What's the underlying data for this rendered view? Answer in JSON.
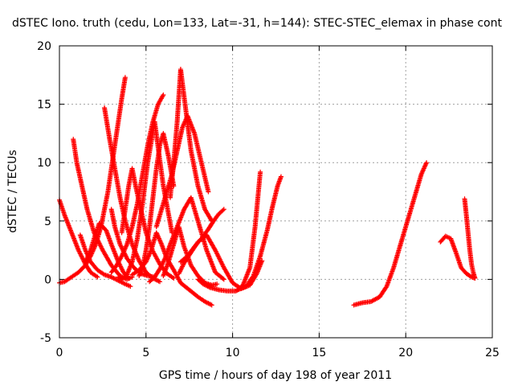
{
  "chart_data": {
    "type": "scatter",
    "title": "dSTEC Iono. truth (cedu, Lon=133, Lat=-31, h=144): STEC-STEC_elemax in phase cont",
    "xlabel": "GPS time / hours of day 198 of year 2011",
    "ylabel": "dSTEC  / TECUs",
    "xlim": [
      0,
      25
    ],
    "ylim": [
      -5,
      20
    ],
    "xticks": [
      "0",
      "5",
      "10",
      "15",
      "20",
      "25"
    ],
    "yticks": [
      "-5",
      "0",
      "5",
      "10",
      "15",
      "20"
    ],
    "grid": true,
    "marker": "plus",
    "color": "#ff0000",
    "series": [
      {
        "x": [
          0.0,
          0.3,
          0.7,
          1.1,
          1.5,
          1.8,
          2.1,
          2.4,
          2.8,
          3.2,
          3.6,
          3.8
        ],
        "y": [
          -0.3,
          -0.2,
          0.2,
          0.6,
          1.2,
          2.0,
          3.0,
          4.5,
          7.5,
          11.5,
          15.5,
          17.3
        ]
      },
      {
        "x": [
          0.0,
          0.3,
          0.7,
          1.1,
          1.5,
          1.8,
          2.2
        ],
        "y": [
          6.8,
          5.5,
          4.0,
          2.5,
          1.3,
          0.6,
          0.2
        ]
      },
      {
        "x": [
          0.8,
          1.0,
          1.3,
          1.6,
          2.0,
          2.5,
          3.0,
          3.5,
          3.9,
          4.2
        ],
        "y": [
          12.0,
          10.0,
          8.0,
          6.0,
          4.0,
          2.5,
          1.2,
          0.3,
          0.0,
          0.2
        ]
      },
      {
        "x": [
          1.2,
          1.5,
          1.8,
          2.2,
          2.6,
          3.0,
          3.4,
          3.8,
          4.1
        ],
        "y": [
          3.8,
          2.5,
          1.5,
          0.8,
          0.4,
          0.2,
          -0.1,
          -0.4,
          -0.6
        ]
      },
      {
        "x": [
          1.5,
          1.8,
          2.0,
          2.3,
          2.7,
          3.0,
          3.4,
          3.7,
          4.0
        ],
        "y": [
          1.5,
          2.5,
          3.5,
          4.8,
          4.2,
          3.0,
          1.5,
          0.6,
          0.1
        ]
      },
      {
        "x": [
          2.6,
          2.9,
          3.2,
          3.5,
          3.8,
          4.2,
          4.6,
          5.0,
          5.4,
          5.8
        ],
        "y": [
          14.7,
          12.0,
          9.5,
          7.0,
          5.0,
          3.0,
          1.6,
          0.6,
          0.1,
          -0.2
        ]
      },
      {
        "x": [
          3.0,
          3.2,
          3.5,
          3.9,
          4.3,
          4.7,
          5.1,
          5.5
        ],
        "y": [
          6.0,
          4.5,
          3.0,
          1.8,
          1.0,
          0.5,
          0.3,
          0.2
        ]
      },
      {
        "x": [
          3.0,
          3.3,
          3.6,
          3.9,
          4.2,
          4.5,
          4.8,
          5.1,
          5.4,
          5.7,
          6.0
        ],
        "y": [
          0.6,
          1.2,
          2.0,
          3.0,
          4.5,
          6.5,
          9.0,
          11.5,
          13.5,
          15.0,
          15.8
        ]
      },
      {
        "x": [
          3.4,
          3.6,
          3.9,
          4.2,
          4.5,
          4.8,
          5.1,
          5.5,
          6.0,
          6.5
        ],
        "y": [
          0.2,
          0.0,
          0.4,
          1.5,
          3.5,
          6.5,
          10.0,
          13.5,
          8.0,
          4.0
        ]
      },
      {
        "x": [
          3.6,
          3.8,
          4.0,
          4.2,
          4.4,
          4.7,
          5.0,
          5.4,
          5.8,
          6.2,
          6.6
        ],
        "y": [
          4.0,
          6.0,
          8.0,
          9.5,
          8.0,
          6.0,
          4.0,
          2.4,
          1.3,
          0.5,
          0.1
        ]
      },
      {
        "x": [
          4.2,
          4.6,
          5.0,
          5.3,
          5.6,
          5.9,
          6.2,
          6.6,
          7.0,
          7.5,
          8.0,
          8.4,
          8.8
        ],
        "y": [
          0.4,
          0.8,
          1.5,
          2.5,
          4.0,
          3.0,
          1.8,
          0.8,
          -0.3,
          -0.9,
          -1.5,
          -1.9,
          -2.2
        ]
      },
      {
        "x": [
          4.6,
          4.8,
          5.0,
          5.2,
          5.4,
          5.6,
          5.8,
          6.0,
          6.3,
          6.6
        ],
        "y": [
          0.3,
          1.0,
          2.5,
          4.5,
          7.0,
          9.5,
          11.5,
          12.5,
          10.5,
          8.0
        ]
      },
      {
        "x": [
          5.2,
          5.5,
          5.8,
          6.1,
          6.4,
          6.8,
          7.2,
          7.6,
          8.0,
          8.5,
          9.0,
          9.5
        ],
        "y": [
          -0.2,
          0.2,
          0.9,
          1.8,
          3.0,
          4.5,
          6.0,
          7.0,
          5.0,
          2.5,
          0.6,
          0.0
        ]
      },
      {
        "x": [
          5.6,
          5.9,
          6.2,
          6.5,
          6.8,
          7.1,
          7.4,
          7.8,
          8.2,
          8.6
        ],
        "y": [
          4.5,
          6.0,
          7.5,
          9.0,
          11.0,
          13.0,
          14.0,
          12.5,
          10.0,
          7.5
        ]
      },
      {
        "x": [
          6.0,
          6.3,
          6.6,
          6.9,
          7.2,
          7.6,
          8.0,
          8.4,
          8.8,
          9.1
        ],
        "y": [
          0.3,
          1.5,
          3.0,
          4.5,
          2.8,
          1.2,
          0.3,
          -0.3,
          -0.5,
          -0.4
        ]
      },
      {
        "x": [
          6.4,
          6.6,
          6.8,
          7.0,
          7.3,
          7.6,
          8.0,
          8.4,
          8.8
        ],
        "y": [
          7.0,
          10.0,
          13.5,
          18.0,
          14.5,
          11.0,
          8.0,
          6.0,
          5.0
        ]
      },
      {
        "x": [
          6.9,
          7.2,
          7.6,
          8.0,
          8.5,
          9.0,
          9.5,
          10.0,
          10.5,
          11.0,
          11.4,
          11.7
        ],
        "y": [
          0.5,
          1.4,
          2.3,
          3.2,
          3.8,
          2.5,
          1.0,
          -0.3,
          -0.8,
          -0.5,
          0.5,
          1.6
        ]
      },
      {
        "x": [
          7.0,
          7.4,
          7.8,
          8.2,
          8.6,
          8.9,
          9.2,
          9.5
        ],
        "y": [
          1.5,
          2.0,
          2.8,
          3.5,
          4.3,
          5.0,
          5.6,
          6.0
        ]
      },
      {
        "x": [
          8.0,
          8.3,
          8.7,
          9.2,
          9.7,
          10.2,
          10.6,
          11.0,
          11.3,
          11.6
        ],
        "y": [
          0.0,
          -0.4,
          -0.7,
          -0.9,
          -1.0,
          -1.0,
          -0.5,
          1.0,
          4.5,
          9.2
        ]
      },
      {
        "x": [
          10.3,
          10.8,
          11.2,
          11.6,
          12.0,
          12.3,
          12.6,
          12.8
        ],
        "y": [
          -0.9,
          -0.6,
          0.3,
          2.0,
          4.2,
          6.2,
          8.0,
          8.8
        ]
      },
      {
        "x": [
          17.0,
          17.5,
          18.0,
          18.5,
          18.9,
          19.3,
          19.7,
          20.1,
          20.5,
          20.9,
          21.2
        ],
        "y": [
          -2.2,
          -2.0,
          -1.9,
          -1.5,
          -0.6,
          1.0,
          3.0,
          5.0,
          7.0,
          9.0,
          10.0
        ]
      },
      {
        "x": [
          22.0,
          22.3,
          22.6,
          22.9,
          23.2,
          23.5,
          23.8,
          24.0
        ],
        "y": [
          3.2,
          3.7,
          3.5,
          2.3,
          1.0,
          0.5,
          0.2,
          0.1
        ]
      },
      {
        "x": [
          23.4,
          23.5,
          23.6,
          23.7,
          23.8,
          23.9,
          24.0
        ],
        "y": [
          6.9,
          5.5,
          4.0,
          2.5,
          1.3,
          0.6,
          0.1
        ]
      }
    ]
  }
}
